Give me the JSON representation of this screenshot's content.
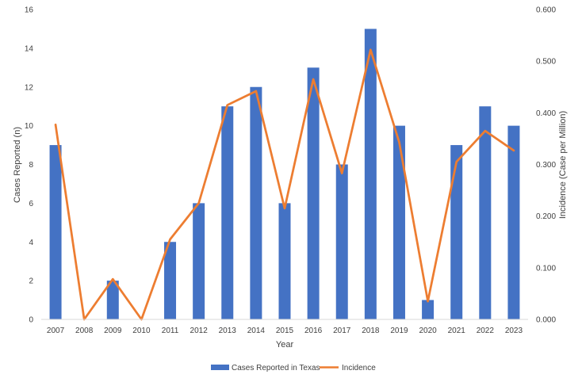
{
  "chart_data": {
    "type": "bar",
    "categories": [
      "2007",
      "2008",
      "2009",
      "2010",
      "2011",
      "2012",
      "2013",
      "2014",
      "2015",
      "2016",
      "2017",
      "2018",
      "2019",
      "2020",
      "2021",
      "2022",
      "2023"
    ],
    "series": [
      {
        "name": "Cases Reported in Texas",
        "type": "bar",
        "axis": "left",
        "color": "#4472C4",
        "values": [
          9,
          0,
          2,
          0,
          4,
          6,
          11,
          12,
          6,
          13,
          8,
          15,
          10,
          1,
          9,
          11,
          10
        ]
      },
      {
        "name": "Incidence",
        "type": "line",
        "axis": "right",
        "color": "#ED7D31",
        "values": [
          0.377,
          0.0,
          0.078,
          0.0,
          0.155,
          0.225,
          0.415,
          0.442,
          0.215,
          0.465,
          0.283,
          0.522,
          0.343,
          0.035,
          0.305,
          0.365,
          0.327
        ]
      }
    ],
    "xlabel": "Year",
    "ylabel": "Cases Reported (n)",
    "y2label": "Incidence (Case per Million)",
    "ylim": [
      0,
      16
    ],
    "y2lim": [
      0,
      0.6
    ],
    "yticks": [
      "0",
      "2",
      "4",
      "6",
      "8",
      "10",
      "12",
      "14",
      "16"
    ],
    "y2ticks": [
      "0.000",
      "0.100",
      "0.200",
      "0.300",
      "0.400",
      "0.500",
      "0.600"
    ],
    "grid": false,
    "legend": "bottom-center"
  }
}
